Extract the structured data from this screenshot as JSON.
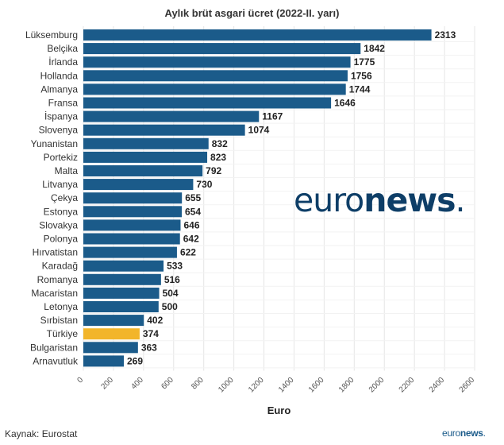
{
  "title": "Aylık brüt asgari ücret (2022-II. yarı)",
  "source": "Kaynak: Eurostat",
  "logo": {
    "part1": "euro",
    "part2": "news",
    "dot": "."
  },
  "colors": {
    "bar": "#1b5b8a",
    "highlight": "#f2b52a",
    "grid": "#e6e6e6"
  },
  "chart_data": {
    "type": "bar",
    "orientation": "horizontal",
    "xlabel": "Euro",
    "xlim": [
      0,
      2600
    ],
    "ticks": [
      0,
      200,
      400,
      600,
      800,
      1000,
      1200,
      1400,
      1600,
      1800,
      2000,
      2200,
      2400,
      2600
    ],
    "grid": true,
    "highlight_category": "Türkiye",
    "categories": [
      "Lüksemburg",
      "Belçika",
      "İrlanda",
      "Hollanda",
      "Almanya",
      "Fransa",
      "İspanya",
      "Slovenya",
      "Yunanistan",
      "Portekiz",
      "Malta",
      "Litvanya",
      "Çekya",
      "Estonya",
      "Slovakya",
      "Polonya",
      "Hırvatistan",
      "Karadağ",
      "Romanya",
      "Macaristan",
      "Letonya",
      "Sırbistan",
      "Türkiye",
      "Bulgaristan",
      "Arnavutluk"
    ],
    "values": [
      2313,
      1842,
      1775,
      1756,
      1744,
      1646,
      1167,
      1074,
      832,
      823,
      792,
      730,
      655,
      654,
      646,
      642,
      622,
      533,
      516,
      504,
      500,
      402,
      374,
      363,
      269
    ]
  }
}
